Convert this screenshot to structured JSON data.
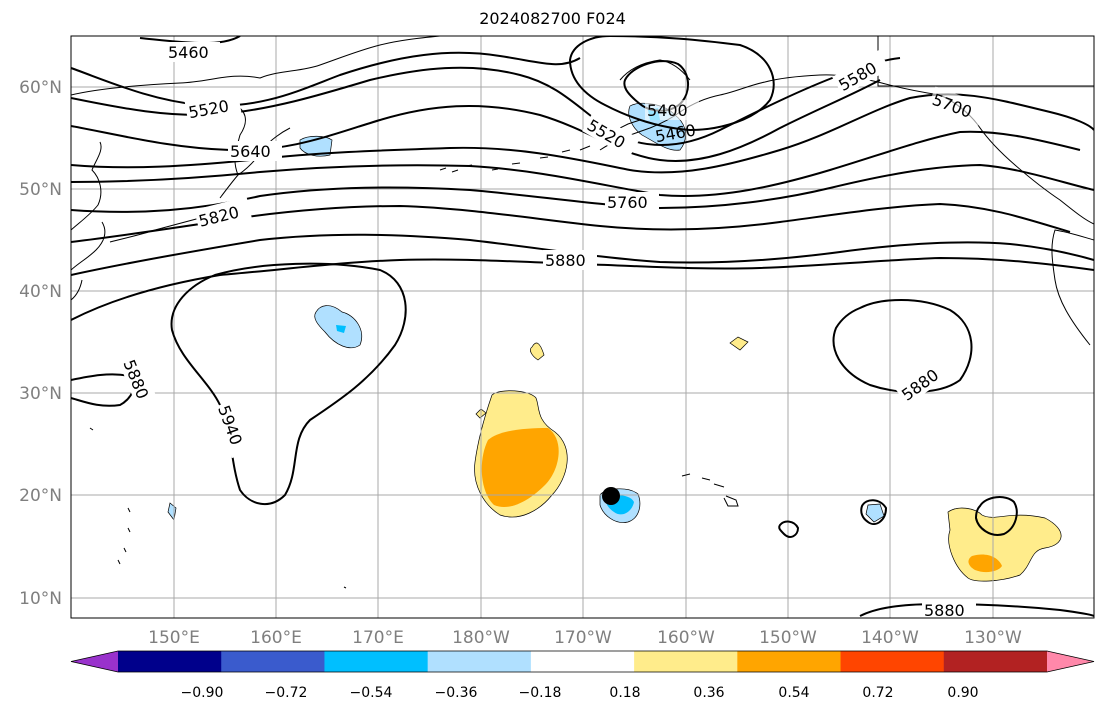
{
  "title": "2024082700 F024",
  "map": {
    "lat_labels": [
      "60°N",
      "50°N",
      "40°N",
      "30°N",
      "20°N",
      "10°N"
    ],
    "lon_labels": [
      "150°E",
      "160°E",
      "170°E",
      "180°W",
      "170°W",
      "160°W",
      "150°W",
      "140°W",
      "130°W"
    ],
    "contour_labels": [
      "5460",
      "5520",
      "5640",
      "5820",
      "5760",
      "5880",
      "5400",
      "5460",
      "5520",
      "5580",
      "5700",
      "5880",
      "5940",
      "5880",
      "5880"
    ],
    "marker": "storm center"
  },
  "colorbar": {
    "ticks": [
      "−0.90",
      "−0.72",
      "−0.54",
      "−0.36",
      "−0.18",
      "0.18",
      "0.36",
      "0.54",
      "0.72",
      "0.90"
    ],
    "colors": [
      "#9932cc",
      "#00008b",
      "#3a5bcd",
      "#00bfff",
      "#b0e0ff",
      "#ffffff",
      "#ffec8b",
      "#ffa500",
      "#ff4500",
      "#b22222",
      "#ff88aa"
    ]
  }
}
